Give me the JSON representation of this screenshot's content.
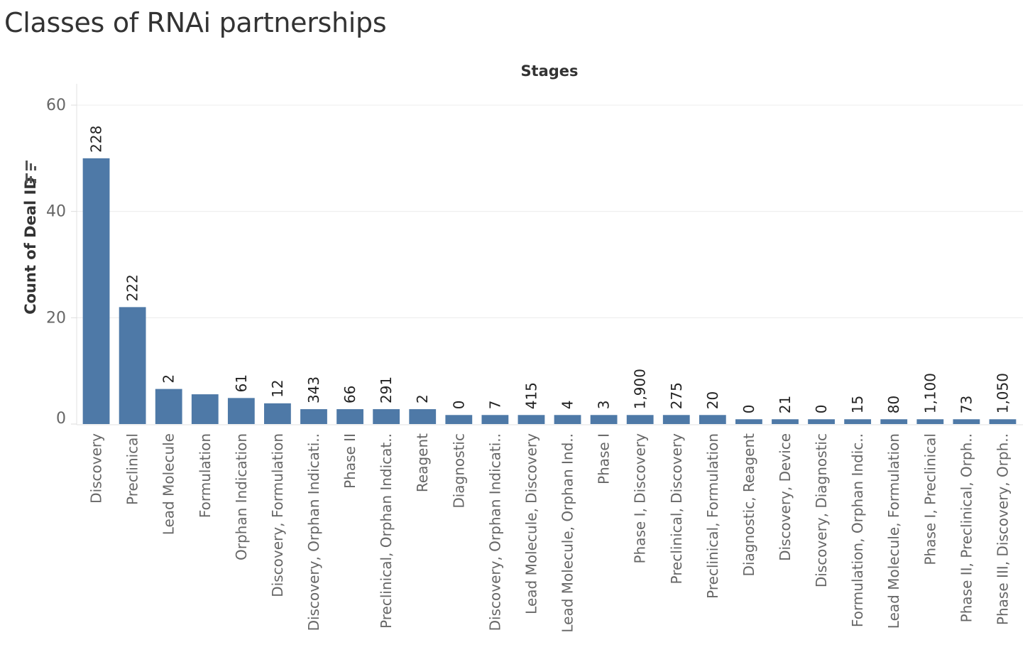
{
  "title": "Classes of RNAi partnerships",
  "chart_data": {
    "type": "bar",
    "title": "Classes of RNAi partnerships",
    "column_header": "Stages",
    "ylabel": "Count of Deal ID",
    "ylabel_icon": "sort-descending-icon",
    "ylim": [
      0,
      64
    ],
    "yticks": [
      0,
      20,
      40,
      60
    ],
    "grid": true,
    "bar_color": "#4e79a7",
    "categories": [
      "Discovery",
      "Preclinical",
      "Lead Molecule",
      "Formulation",
      "Orphan Indication",
      "Discovery, Formulation",
      "Discovery, Orphan Indicati..",
      "Phase II",
      "Preclinical, Orphan Indicat..",
      "Reagent",
      "Diagnostic",
      "Discovery, Orphan Indicati..",
      "Lead Molecule, Discovery",
      "Lead Molecule, Orphan Ind..",
      "Phase I",
      "Phase I, Discovery",
      "Preclinical, Discovery",
      "Preclinical, Formulation",
      "Diagnostic, Reagent",
      "Discovery, Device",
      "Discovery, Diagnostic",
      "Formulation, Orphan Indic..",
      "Lead Molecule, Formulation",
      "Phase I, Preclinical",
      "Phase II, Preclinical, Orph..",
      "Phase III, Discovery, Orph.."
    ],
    "values": [
      50,
      22,
      6.6,
      5.6,
      4.9,
      3.9,
      2.8,
      2.8,
      2.8,
      2.8,
      1.7,
      1.7,
      1.7,
      1.7,
      1.7,
      1.7,
      1.7,
      1.7,
      0.9,
      0.9,
      0.9,
      0.9,
      0.9,
      0.9,
      0.9,
      0.9
    ],
    "data_labels": [
      "228",
      "222",
      "2",
      "",
      "61",
      "12",
      "343",
      "66",
      "291",
      "2",
      "0",
      "7",
      "415",
      "4",
      "3",
      "1,900",
      "275",
      "20",
      "0",
      "21",
      "0",
      "15",
      "80",
      "1,100",
      "73",
      "1,050"
    ]
  }
}
